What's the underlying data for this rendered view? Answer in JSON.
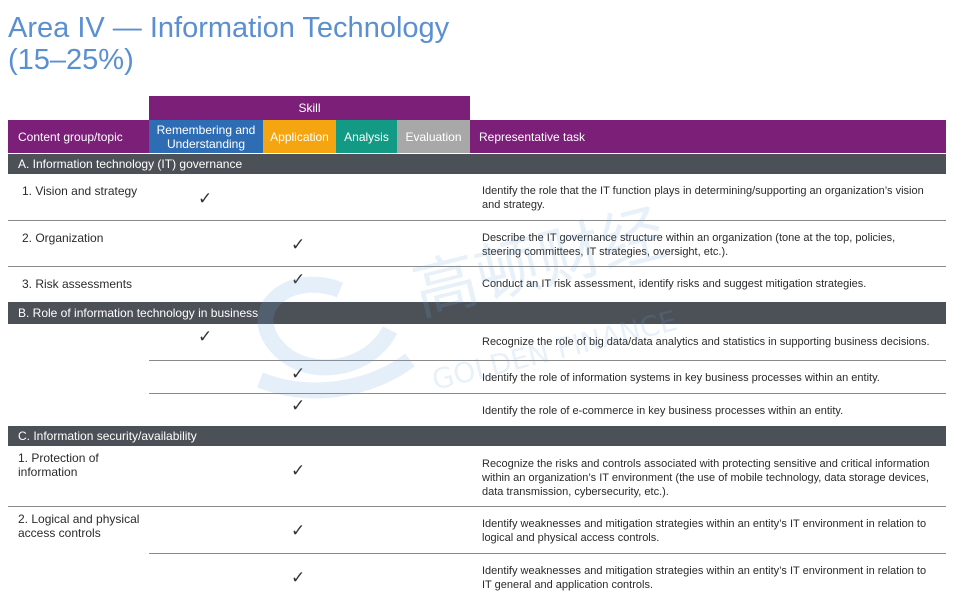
{
  "title_line1": "Area IV — Information Technology",
  "title_line2": "(15–25%)",
  "header": {
    "skill": "Skill",
    "content_group": "Content group/topic",
    "remembering": "Remembering and Understanding",
    "application": "Application",
    "analysis": "Analysis",
    "evaluation": "Evaluation",
    "representative_task": "Representative task"
  },
  "sections": [
    {
      "title": "A. Information technology (IT) governance",
      "rows": [
        {
          "topic": "1. Vision and strategy",
          "skill": "Remembering and Understanding",
          "task": "Identify the role that the IT function plays in determining/supporting an organization’s vision and strategy."
        },
        {
          "topic": "2. Organization",
          "skill": "Application",
          "task": "Describe the IT governance structure within an organization (tone at the top, policies, steering committees, IT strategies, oversight, etc.)."
        },
        {
          "topic": "3. Risk assessments",
          "skill": "Application",
          "task": "Conduct an IT risk assessment, identify risks and suggest mitigation strategies."
        }
      ]
    },
    {
      "title": "B. Role of information technology in business",
      "rows": [
        {
          "topic": "",
          "skill": "Remembering and Understanding",
          "task": "Recognize the role of big data/data analytics and statistics in supporting business decisions."
        },
        {
          "topic": "",
          "skill": "Application",
          "task": "Identify the role of information systems in key business processes within an entity."
        },
        {
          "topic": "",
          "skill": "Application",
          "task": "Identify the role of e-commerce in key business processes within an entity."
        }
      ]
    },
    {
      "title": "C. Information security/availability",
      "rows": [
        {
          "topic": "1. Protection of information",
          "skill": "Application",
          "task": "Recognize the risks and controls associated with protecting sensitive and critical information within an organization’s IT environment (the use of mobile technology, data storage devices, data transmission, cybersecurity, etc.)."
        },
        {
          "topic": "2. Logical and physical access controls",
          "skill": "Application",
          "task": "Identify weaknesses and mitigation strategies within an entity’s IT environment in relation to logical and physical access controls."
        },
        {
          "topic": "",
          "skill": "Application",
          "task": "Identify weaknesses and mitigation strategies within an entity’s IT environment in relation to IT general and application controls."
        }
      ]
    }
  ],
  "check_glyph": "✓",
  "watermark": {
    "text_cn": "高顿财经",
    "text_en": "GOLDEN FINANCE"
  },
  "colors": {
    "purple": "#7b1f78",
    "blue": "#2e6db4",
    "yellow": "#f5a50f",
    "teal": "#139a84",
    "gray": "#a8a8a8",
    "section": "#4c5057",
    "title": "#5a8fd1"
  }
}
